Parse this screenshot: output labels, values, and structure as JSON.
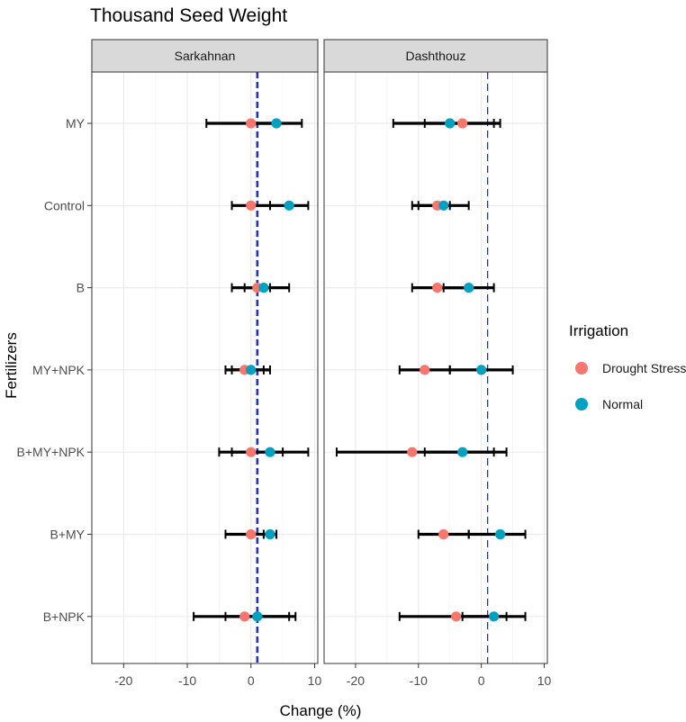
{
  "chart_data": {
    "type": "forest",
    "title": "Thousand Seed Weight",
    "xlabel": "Change (%)",
    "ylabel": "Fertilizers",
    "xlim": [
      -25,
      10.5
    ],
    "xticks": [
      -20,
      -10,
      0,
      10
    ],
    "reference_line_x": 1,
    "categories": [
      "MY",
      "Control",
      "B",
      "MY+NPK",
      "B+MY+NPK",
      "B+MY",
      "B+NPK"
    ],
    "legend": {
      "title": "Irrigation",
      "entries": [
        {
          "name": "Drought Stress",
          "color": "#F8766D"
        },
        {
          "name": "Normal",
          "color": "#00A0C0"
        }
      ]
    },
    "panels": [
      {
        "name": "Sarkahnan",
        "series": [
          {
            "name": "Drought Stress",
            "color": "#F8766D",
            "points": [
              {
                "category": "MY",
                "value": 0,
                "lower": -7,
                "upper": 4
              },
              {
                "category": "Control",
                "value": 0,
                "lower": -3,
                "upper": 3
              },
              {
                "category": "B",
                "value": 1,
                "lower": -3,
                "upper": 3
              },
              {
                "category": "MY+NPK",
                "value": -1,
                "lower": -4,
                "upper": 2
              },
              {
                "category": "B+MY+NPK",
                "value": 0,
                "lower": -5,
                "upper": 5
              },
              {
                "category": "B+MY",
                "value": 0,
                "lower": -4,
                "upper": 4
              },
              {
                "category": "B+NPK",
                "value": -1,
                "lower": -9,
                "upper": 6
              }
            ]
          },
          {
            "name": "Normal",
            "color": "#00A0C0",
            "points": [
              {
                "category": "MY",
                "value": 4,
                "lower": 0,
                "upper": 8
              },
              {
                "category": "Control",
                "value": 6,
                "lower": 3,
                "upper": 9
              },
              {
                "category": "B",
                "value": 2,
                "lower": -1,
                "upper": 6
              },
              {
                "category": "MY+NPK",
                "value": 0,
                "lower": -3,
                "upper": 3
              },
              {
                "category": "B+MY+NPK",
                "value": 3,
                "lower": -3,
                "upper": 9
              },
              {
                "category": "B+MY",
                "value": 3,
                "lower": 2,
                "upper": 4
              },
              {
                "category": "B+NPK",
                "value": 1,
                "lower": -4,
                "upper": 7
              }
            ]
          }
        ]
      },
      {
        "name": "Dashthouz",
        "series": [
          {
            "name": "Drought Stress",
            "color": "#F8766D",
            "points": [
              {
                "category": "MY",
                "value": -3,
                "lower": -14,
                "upper": 2
              },
              {
                "category": "Control",
                "value": -7,
                "lower": -11,
                "upper": -5
              },
              {
                "category": "B",
                "value": -7,
                "lower": -11,
                "upper": -2
              },
              {
                "category": "MY+NPK",
                "value": -9,
                "lower": -13,
                "upper": -5
              },
              {
                "category": "B+MY+NPK",
                "value": -11,
                "lower": -23,
                "upper": 2
              },
              {
                "category": "B+MY",
                "value": -6,
                "lower": -10,
                "upper": -2
              },
              {
                "category": "B+NPK",
                "value": -4,
                "lower": -13,
                "upper": 4
              }
            ]
          },
          {
            "name": "Normal",
            "color": "#00A0C0",
            "points": [
              {
                "category": "MY",
                "value": -5,
                "lower": -9,
                "upper": 3
              },
              {
                "category": "Control",
                "value": -6,
                "lower": -10,
                "upper": -2
              },
              {
                "category": "B",
                "value": -2,
                "lower": -6,
                "upper": 2
              },
              {
                "category": "MY+NPK",
                "value": 0,
                "lower": -5,
                "upper": 5
              },
              {
                "category": "B+MY+NPK",
                "value": -3,
                "lower": -9,
                "upper": 4
              },
              {
                "category": "B+MY",
                "value": 3,
                "lower": -2,
                "upper": 7
              },
              {
                "category": "B+NPK",
                "value": 2,
                "lower": -3,
                "upper": 7
              }
            ]
          }
        ]
      }
    ]
  }
}
